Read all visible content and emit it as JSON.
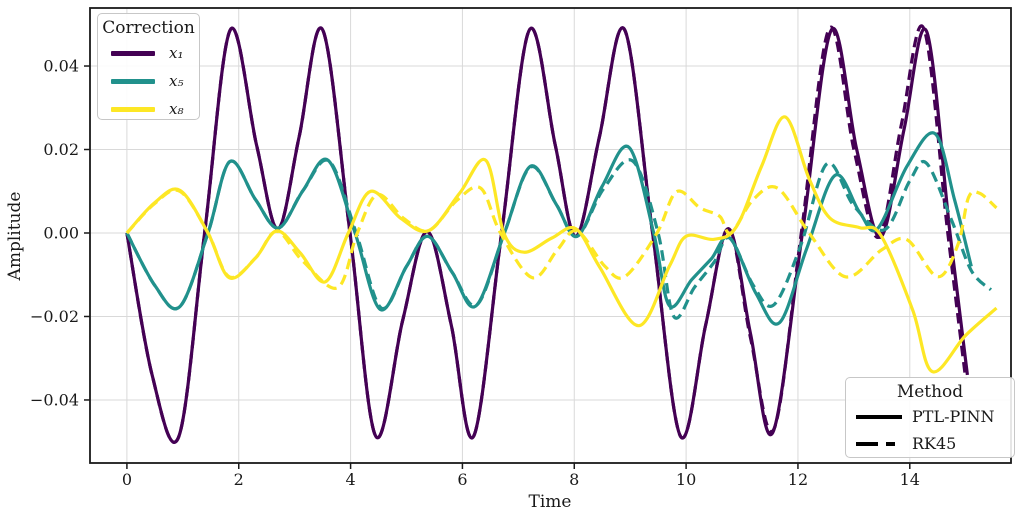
{
  "chart_data": {
    "type": "line",
    "title": "",
    "xlabel": "Time",
    "ylabel": "Amplitude",
    "xlim": [
      -0.66,
      15.81
    ],
    "ylim": [
      -0.0551,
      0.0539
    ],
    "grid": true,
    "grid_color": "#d9d9d9",
    "spine_color": "#1a1a1a",
    "xticks": {
      "values": [
        0,
        2,
        4,
        6,
        8,
        10,
        12,
        14
      ],
      "labels": [
        "0",
        "2",
        "4",
        "6",
        "8",
        "10",
        "12",
        "14"
      ]
    },
    "yticks": {
      "values": [
        0.04,
        0.02,
        0.0,
        -0.02,
        -0.04
      ],
      "labels": [
        "0.04",
        "0.02",
        "0.00",
        "−0.02",
        "−0.04"
      ]
    },
    "series": [
      {
        "name": "x1 PTL-PINN",
        "mode": "x₁",
        "method": "PTL-PINN",
        "color": "#440154",
        "style": "solid",
        "points": [
          [
            0,
            0
          ],
          [
            0.45,
            -0.034
          ],
          [
            0.93,
            -0.0487
          ],
          [
            1.39,
            0
          ],
          [
            1.85,
            0.0487
          ],
          [
            2.32,
            0.021
          ],
          [
            2.7,
            0.001
          ],
          [
            3.08,
            0.023
          ],
          [
            3.5,
            0.0487
          ],
          [
            3.99,
            0
          ],
          [
            4.45,
            -0.0487
          ],
          [
            4.93,
            -0.021
          ],
          [
            5.37,
            0.0003
          ],
          [
            5.8,
            -0.022
          ],
          [
            6.2,
            -0.0487
          ],
          [
            6.7,
            0
          ],
          [
            7.2,
            0.0487
          ],
          [
            7.66,
            0.021
          ],
          [
            8.03,
            -0.0008
          ],
          [
            8.45,
            0.023
          ],
          [
            8.9,
            0.0487
          ],
          [
            9.4,
            0
          ],
          [
            9.9,
            -0.0487
          ],
          [
            10.35,
            -0.022
          ],
          [
            10.76,
            0.001
          ],
          [
            11.15,
            -0.024
          ],
          [
            11.55,
            -0.0478
          ],
          [
            12.08,
            0
          ],
          [
            12.6,
            0.0487
          ],
          [
            13.05,
            0.02
          ],
          [
            13.48,
            -0.001
          ],
          [
            13.9,
            0.025
          ],
          [
            14.3,
            0.0483
          ],
          [
            14.72,
            0
          ],
          [
            15.03,
            -0.034
          ]
        ]
      },
      {
        "name": "x1 RK45",
        "mode": "x₁",
        "method": "RK45",
        "color": "#440154",
        "style": "dashed",
        "points": [
          [
            0,
            0
          ],
          [
            0.45,
            -0.034
          ],
          [
            0.93,
            -0.0487
          ],
          [
            1.39,
            0
          ],
          [
            1.85,
            0.0487
          ],
          [
            2.32,
            0.021
          ],
          [
            2.7,
            0.001
          ],
          [
            3.08,
            0.023
          ],
          [
            3.5,
            0.0487
          ],
          [
            3.99,
            0
          ],
          [
            4.45,
            -0.0487
          ],
          [
            4.93,
            -0.021
          ],
          [
            5.37,
            0.0003
          ],
          [
            5.8,
            -0.022
          ],
          [
            6.2,
            -0.0487
          ],
          [
            6.7,
            0
          ],
          [
            7.2,
            0.0487
          ],
          [
            7.66,
            0.021
          ],
          [
            8.03,
            -0.0008
          ],
          [
            8.45,
            0.023
          ],
          [
            8.9,
            0.0487
          ],
          [
            9.4,
            0
          ],
          [
            9.9,
            -0.0487
          ],
          [
            10.35,
            -0.022
          ],
          [
            10.76,
            0.001
          ],
          [
            11.15,
            -0.025
          ],
          [
            11.57,
            -0.047
          ],
          [
            12.06,
            0
          ],
          [
            12.56,
            0.049
          ],
          [
            13.0,
            0.02
          ],
          [
            13.44,
            -0.001
          ],
          [
            13.85,
            0.026
          ],
          [
            14.25,
            0.049
          ],
          [
            14.68,
            0
          ],
          [
            15.0,
            -0.035
          ]
        ]
      },
      {
        "name": "x5 PTL-PINN",
        "mode": "x₅",
        "method": "PTL-PINN",
        "color": "#21918c",
        "style": "solid",
        "points": [
          [
            0,
            0
          ],
          [
            0.5,
            -0.0126
          ],
          [
            0.95,
            -0.0176
          ],
          [
            1.45,
            0
          ],
          [
            1.84,
            0.0171
          ],
          [
            2.3,
            0.008
          ],
          [
            2.71,
            0.0012
          ],
          [
            3.15,
            0.0102
          ],
          [
            3.6,
            0.0174
          ],
          [
            4.08,
            0
          ],
          [
            4.53,
            -0.0183
          ],
          [
            5.0,
            -0.008
          ],
          [
            5.38,
            -0.0008
          ],
          [
            5.82,
            -0.0095
          ],
          [
            6.24,
            -0.0175
          ],
          [
            6.75,
            0
          ],
          [
            7.22,
            0.016
          ],
          [
            7.68,
            0.0068
          ],
          [
            8.05,
            -0.0008
          ],
          [
            8.5,
            0.0112
          ],
          [
            8.98,
            0.0205
          ],
          [
            9.42,
            0
          ],
          [
            9.7,
            -0.0174
          ],
          [
            10.1,
            -0.0112
          ],
          [
            10.45,
            -0.0062
          ],
          [
            10.78,
            -0.0012
          ],
          [
            11.25,
            -0.0145
          ],
          [
            11.67,
            -0.0215
          ],
          [
            12.15,
            -0.004
          ],
          [
            12.66,
            0.0138
          ],
          [
            13.1,
            0.005
          ],
          [
            13.42,
            0.001
          ],
          [
            13.95,
            0.016
          ],
          [
            14.45,
            0.0238
          ],
          [
            14.8,
            0.008
          ],
          [
            15.1,
            -0.008
          ]
        ]
      },
      {
        "name": "x5 RK45",
        "mode": "x₅",
        "method": "RK45",
        "color": "#21918c",
        "style": "dashed",
        "points": [
          [
            0,
            0
          ],
          [
            0.5,
            -0.0126
          ],
          [
            0.95,
            -0.0176
          ],
          [
            1.45,
            0
          ],
          [
            1.84,
            0.0171
          ],
          [
            2.3,
            0.008
          ],
          [
            2.71,
            0.0012
          ],
          [
            3.15,
            0.0102
          ],
          [
            3.62,
            0.0172
          ],
          [
            4.1,
            0
          ],
          [
            4.55,
            -0.018
          ],
          [
            5.0,
            -0.008
          ],
          [
            5.38,
            -0.0008
          ],
          [
            5.82,
            -0.0095
          ],
          [
            6.26,
            -0.0172
          ],
          [
            6.75,
            0
          ],
          [
            7.22,
            0.0158
          ],
          [
            7.68,
            0.0068
          ],
          [
            8.05,
            -0.0008
          ],
          [
            8.52,
            0.0105
          ],
          [
            9.05,
            0.0172
          ],
          [
            9.5,
            0
          ],
          [
            9.78,
            -0.02
          ],
          [
            10.15,
            -0.013
          ],
          [
            10.5,
            -0.007
          ],
          [
            10.78,
            -0.0012
          ],
          [
            11.2,
            -0.0125
          ],
          [
            11.57,
            -0.0172
          ],
          [
            12.05,
            -0.003
          ],
          [
            12.52,
            0.0166
          ],
          [
            13.0,
            0.0065
          ],
          [
            13.55,
            0.0008
          ],
          [
            14.0,
            0.0125
          ],
          [
            14.3,
            0.0167
          ],
          [
            14.75,
            0.003
          ],
          [
            15.1,
            -0.009
          ],
          [
            15.45,
            -0.0136
          ]
        ]
      },
      {
        "name": "x8 PTL-PINN",
        "mode": "x₈",
        "method": "PTL-PINN",
        "color": "#fde725",
        "style": "solid",
        "points": [
          [
            0,
            0
          ],
          [
            0.5,
            0.0073
          ],
          [
            0.95,
            0.0102
          ],
          [
            1.45,
            0
          ],
          [
            1.83,
            -0.0107
          ],
          [
            2.3,
            -0.006
          ],
          [
            2.68,
            0.0005
          ],
          [
            3.1,
            -0.0048
          ],
          [
            3.55,
            -0.0117
          ],
          [
            3.96,
            0
          ],
          [
            4.36,
            0.01
          ],
          [
            4.9,
            0.0035
          ],
          [
            5.4,
            0.0006
          ],
          [
            5.95,
            0.0095
          ],
          [
            6.42,
            0.0174
          ],
          [
            6.74,
            0
          ],
          [
            7.1,
            -0.0046
          ],
          [
            7.6,
            -0.0012
          ],
          [
            8.03,
            0.001
          ],
          [
            8.46,
            -0.0083
          ],
          [
            9.15,
            -0.0222
          ],
          [
            9.7,
            -0.008
          ],
          [
            10.0,
            -0.0008
          ],
          [
            10.5,
            -0.0015
          ],
          [
            10.9,
            0.0015
          ],
          [
            11.35,
            0.016
          ],
          [
            11.77,
            0.0278
          ],
          [
            12.2,
            0.013
          ],
          [
            12.57,
            0.0036
          ],
          [
            13.1,
            0.0013
          ],
          [
            13.48,
            -0.0005
          ],
          [
            14.05,
            -0.0184
          ],
          [
            14.4,
            -0.0332
          ],
          [
            15.0,
            -0.0245
          ],
          [
            15.55,
            -0.018
          ]
        ]
      },
      {
        "name": "x8 RK45",
        "mode": "x₈",
        "method": "RK45",
        "color": "#fde725",
        "style": "dashed",
        "points": [
          [
            0,
            0
          ],
          [
            0.5,
            0.0071
          ],
          [
            0.95,
            0.01
          ],
          [
            1.45,
            0
          ],
          [
            1.83,
            -0.0105
          ],
          [
            2.3,
            -0.006
          ],
          [
            2.68,
            0.0004
          ],
          [
            3.15,
            -0.0068
          ],
          [
            3.77,
            -0.0131
          ],
          [
            4.12,
            0
          ],
          [
            4.48,
            0.0092
          ],
          [
            4.95,
            0.0035
          ],
          [
            5.4,
            0.0006
          ],
          [
            5.9,
            0.0078
          ],
          [
            6.33,
            0.0107
          ],
          [
            6.68,
            0
          ],
          [
            7.25,
            -0.0107
          ],
          [
            7.7,
            -0.004
          ],
          [
            8.05,
            0.0005
          ],
          [
            8.55,
            -0.008
          ],
          [
            8.91,
            -0.0104
          ],
          [
            9.48,
            0
          ],
          [
            9.83,
            0.0099
          ],
          [
            10.25,
            0.006
          ],
          [
            10.6,
            0.004
          ],
          [
            10.8,
            0
          ],
          [
            11.2,
            0.008
          ],
          [
            11.64,
            0.0107
          ],
          [
            12.2,
            0
          ],
          [
            12.85,
            -0.0105
          ],
          [
            13.5,
            -0.004
          ],
          [
            13.95,
            -0.0016
          ],
          [
            14.5,
            -0.0105
          ],
          [
            14.86,
            -0.0028
          ],
          [
            15.05,
            0.0085
          ],
          [
            15.25,
            0.0095
          ],
          [
            15.55,
            0.006
          ]
        ]
      }
    ],
    "legends": {
      "correction": {
        "title": "Correction",
        "items": [
          {
            "label": "x₁",
            "color": "#440154"
          },
          {
            "label": "x₅",
            "color": "#21918c"
          },
          {
            "label": "x₈",
            "color": "#fde725"
          }
        ],
        "position": "upper-left"
      },
      "method": {
        "title": "Method",
        "color": "#000000",
        "items": [
          {
            "label": "PTL-PINN",
            "style": "solid"
          },
          {
            "label": "RK45",
            "style": "dashed"
          }
        ],
        "position": "lower-right"
      }
    }
  }
}
